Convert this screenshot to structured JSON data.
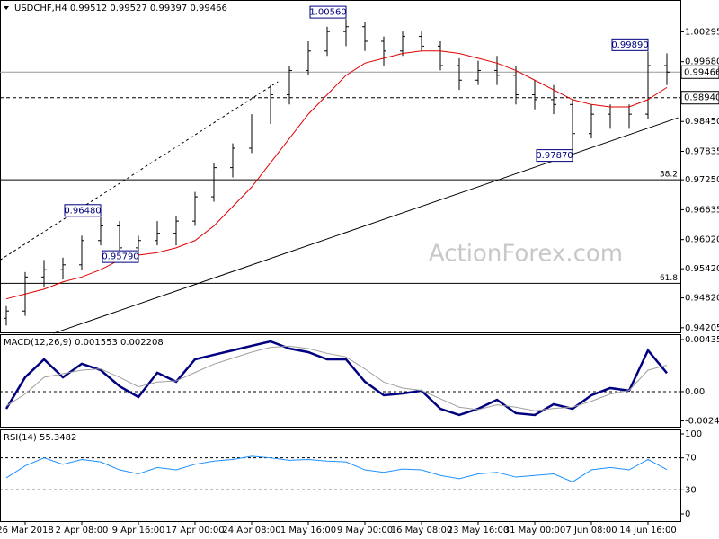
{
  "chart_data": [
    {
      "type": "candlestick",
      "title": "USDCHF,H4 0.99512 0.99527 0.99397 0.99466",
      "watermark": "ActionForex.com",
      "categories": [
        null,
        "26 Mar 2018",
        null,
        null,
        "2 Apr 08:00",
        null,
        null,
        "9 Apr 16:00",
        null,
        null,
        "17 Apr 00:00",
        null,
        null,
        "24 Apr 08:00",
        null,
        null,
        "1 May 16:00",
        null,
        null,
        "9 May 00:00",
        null,
        null,
        "16 May 08:00",
        null,
        null,
        "23 May 16:00",
        null,
        null,
        "31 May 00:00",
        null,
        null,
        "7 Jun 08:00",
        null,
        null,
        "14 Jun 16:00",
        null
      ],
      "open": [
        0.944,
        0.9455,
        0.9525,
        0.954,
        0.955,
        0.96,
        0.963,
        0.9585,
        0.96,
        0.9615,
        0.964,
        0.969,
        0.975,
        0.979,
        0.985,
        0.99,
        0.995,
        0.999,
        1.003,
        1.004,
        1.001,
        0.999,
        1.002,
        1.0,
        0.996,
        0.993,
        0.995,
        0.994,
        0.99,
        0.989,
        0.988,
        0.982,
        0.986,
        0.985,
        0.986,
        0.996
      ],
      "high": [
        0.9465,
        0.9535,
        0.956,
        0.9565,
        0.961,
        0.9648,
        0.964,
        0.961,
        0.964,
        0.965,
        0.97,
        0.976,
        0.98,
        0.986,
        0.992,
        0.996,
        1.001,
        1.004,
        1.0056,
        1.005,
        1.002,
        1.003,
        1.003,
        1.001,
        0.9975,
        0.997,
        0.998,
        0.996,
        0.993,
        0.992,
        0.989,
        0.988,
        0.988,
        0.988,
        0.9989,
        0.9985
      ],
      "low": [
        0.9425,
        0.9445,
        0.9505,
        0.952,
        0.954,
        0.959,
        0.957,
        0.9579,
        0.959,
        0.959,
        0.963,
        0.968,
        0.973,
        0.978,
        0.984,
        0.988,
        0.994,
        0.998,
        1.0,
        0.999,
        0.996,
        0.998,
        0.999,
        0.995,
        0.991,
        0.992,
        0.992,
        0.988,
        0.987,
        0.986,
        0.9787,
        0.981,
        0.983,
        0.983,
        0.985,
        0.992
      ],
      "close": [
        0.9455,
        0.9525,
        0.954,
        0.955,
        0.96,
        0.963,
        0.9585,
        0.96,
        0.9615,
        0.964,
        0.969,
        0.975,
        0.979,
        0.985,
        0.99,
        0.995,
        0.999,
        1.003,
        1.004,
        1.001,
        0.999,
        1.002,
        1.0,
        0.996,
        0.993,
        0.995,
        0.994,
        0.99,
        0.989,
        0.988,
        0.982,
        0.986,
        0.985,
        0.986,
        0.996,
        0.99466
      ],
      "color": "#000000",
      "ma": {
        "color": "#e00000",
        "values": [
          0.948,
          0.949,
          0.95,
          0.9515,
          0.9525,
          0.954,
          0.956,
          0.957,
          0.9575,
          0.9585,
          0.96,
          0.963,
          0.967,
          0.971,
          0.976,
          0.981,
          0.986,
          0.99,
          0.994,
          0.9965,
          0.9975,
          0.9985,
          0.999,
          0.999,
          0.9985,
          0.9975,
          0.9965,
          0.995,
          0.993,
          0.991,
          0.989,
          0.988,
          0.9875,
          0.9875,
          0.989,
          0.9915
        ]
      },
      "ylim": [
        0.9411,
        1.0095
      ],
      "yticks": [
        1.00295,
        {
          "value": 0.9968,
          "label": "0.99680"
        },
        {
          "value": 0.9845,
          "label": "0.98450"
        },
        0.97835,
        {
          "value": 0.9725,
          "label": "0.97250"
        },
        0.96635,
        {
          "value": 0.9602,
          "label": "0.96020"
        },
        {
          "value": 0.9542,
          "label": "0.95420"
        },
        {
          "value": 0.9482,
          "label": "0.94820"
        },
        0.94205
      ],
      "price_lines": [
        {
          "value": 0.99466,
          "label": "0.99466",
          "style": "solid"
        },
        {
          "value": 0.9894,
          "label": "0.98940",
          "style": "dashed"
        }
      ],
      "levels": [
        {
          "value": 0.9725,
          "label": "38.2"
        },
        {
          "value": 0.9512,
          "label": "61.8"
        }
      ],
      "annotations": [
        {
          "value": 1.0056,
          "label": "1.00560"
        },
        {
          "value": 0.9989,
          "label": "0.99890"
        },
        {
          "value": 0.9787,
          "label": "0.97870"
        },
        {
          "value": 0.9648,
          "label": "0.96480"
        },
        {
          "value": 0.9579,
          "label": "0.95790"
        }
      ],
      "trendlines": [
        {
          "x": [
            2.5,
            35.6
          ],
          "y": [
            0.9409,
            0.98527
          ],
          "style": "solid"
        },
        {
          "x": [
            -0.33,
            14.4
          ],
          "y": [
            0.956,
            0.9927
          ],
          "style": "dashed"
        }
      ]
    },
    {
      "type": "line",
      "title": "MACD(12,26,9) 0.001553 0.002208",
      "series": [
        {
          "color": "#000080",
          "values": [
            -0.00143,
            0.0012,
            0.0027,
            0.0012,
            0.00233,
            0.0018,
            0.00045,
            -0.00045,
            0.00158,
            0.00083,
            0.0027,
            0.00308,
            0.00345,
            0.00383,
            0.0042,
            0.0036,
            0.0033,
            0.0027,
            0.0027,
            0.00083,
            -0.0003,
            -0.00015,
            8e-05,
            -0.00143,
            -0.00195,
            -0.00143,
            -0.00068,
            -0.0018,
            -0.00195,
            -0.00105,
            -0.00143,
            -0.0003,
            0.0003,
            8e-05,
            0.00345,
            0.001553
          ]
        },
        {
          "color": "#a0a0a0",
          "values": [
            -0.0012,
            -0.0002,
            0.0012,
            0.0015,
            0.0018,
            0.0019,
            0.0012,
            0.0004,
            0.0008,
            0.0009,
            0.0016,
            0.0023,
            0.0028,
            0.0033,
            0.0037,
            0.0038,
            0.0036,
            0.0032,
            0.0029,
            0.0019,
            0.0008,
            0.0003,
            0.0001,
            -0.0006,
            -0.0013,
            -0.0015,
            -0.0011,
            -0.0013,
            -0.0016,
            -0.0014,
            -0.0013,
            -0.0008,
            -0.0002,
            0.0001,
            0.0018,
            0.002208
          ]
        }
      ],
      "ylim": [
        -0.00293,
        0.0048
      ],
      "yticks": [
        0.004351,
        {
          "value": 0,
          "label": "0.00"
        },
        -0.002448
      ],
      "levels": [
        0
      ]
    },
    {
      "type": "line",
      "title": "RSI(14) 55.3482",
      "series": [
        {
          "color": "#1e90ff",
          "values": [
            45,
            60,
            70,
            62,
            68,
            65,
            55,
            50,
            58,
            55,
            62,
            66,
            68,
            72,
            70,
            67,
            68,
            66,
            65,
            55,
            52,
            56,
            55,
            48,
            44,
            50,
            52,
            46,
            48,
            50,
            40,
            55,
            58,
            55,
            68,
            55.3482
          ]
        }
      ],
      "ylim": [
        -9,
        105.6
      ],
      "yticks": [
        100,
        70,
        30,
        0
      ],
      "levels": [
        70,
        30
      ]
    }
  ]
}
